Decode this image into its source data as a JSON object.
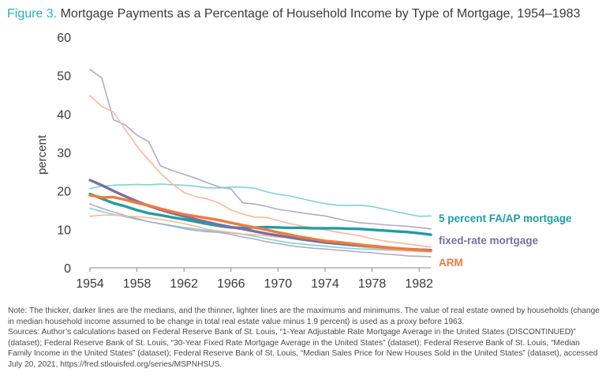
{
  "title": {
    "figure_label": "Figure 3.",
    "text": "Mortgage Payments as a Percentage of Household Income by Type of Mortgage, 1954–1983"
  },
  "notes": {
    "note": "Note: The thicker, darker lines are the medians, and the thinner, lighter lines are the maximums and minimums. The value of real estate owned by households (change in median household income assumed to be change in total real estate value minus 1.9 percent) is used as a proxy before 1963.",
    "sources": "Sources: Author’s calculations based on Federal Reserve Bank of St. Louis, “1-Year Adjustable Rate Mortgage Average in the United States (DISCONTINUED)” (dataset); Federal Reserve Bank of St. Louis, “30-Year Fixed Rate Mortgage Average in the United States” (dataset); Federal Reserve Bank of St. Louis, “Median Family Income in the United States” (dataset); Federal Reserve Bank of St. Louis, “Median Sales Price for New Houses Sold in the United States” (dataset), accessed July 20, 2021, https://fred.stlouisfed.org/series/MSPNHSUS."
  },
  "chart_data": {
    "type": "line",
    "title": "Mortgage Payments as a Percentage of Household Income by Type of Mortgage, 1954–1983",
    "xlabel": "",
    "ylabel": "percent",
    "xlim": [
      1954,
      1983
    ],
    "ylim": [
      0,
      60
    ],
    "xticks": [
      1954,
      1958,
      1962,
      1966,
      1970,
      1974,
      1978,
      1982
    ],
    "yticks": [
      0,
      10,
      20,
      30,
      40,
      50,
      60
    ],
    "grid": false,
    "legend": "inline-right",
    "x": [
      1954,
      1955,
      1956,
      1957,
      1958,
      1959,
      1960,
      1961,
      1962,
      1963,
      1964,
      1965,
      1966,
      1967,
      1968,
      1969,
      1970,
      1971,
      1972,
      1973,
      1974,
      1975,
      1976,
      1977,
      1978,
      1979,
      1980,
      1981,
      1982,
      1983
    ],
    "series": [
      {
        "name": "5 percent FA/AP mortgage",
        "group": "fa",
        "role": "median",
        "color": "#1f9ea3",
        "values": [
          19.2,
          18.0,
          16.8,
          16.0,
          15.0,
          14.2,
          13.7,
          13.1,
          12.6,
          12.0,
          11.4,
          10.9,
          10.5,
          10.4,
          10.5,
          10.6,
          10.5,
          10.4,
          10.4,
          10.3,
          10.3,
          10.3,
          10.2,
          10.1,
          9.9,
          9.7,
          9.5,
          9.3,
          9.0,
          8.6
        ]
      },
      {
        "name": "",
        "group": "fa",
        "role": "max",
        "color": "#7fd3d3",
        "values": [
          20.6,
          21.2,
          21.5,
          21.6,
          21.7,
          21.6,
          21.8,
          21.6,
          21.5,
          21.2,
          20.8,
          20.8,
          21.0,
          21.0,
          20.7,
          19.8,
          19.1,
          18.7,
          18.0,
          17.3,
          16.7,
          16.3,
          16.2,
          16.3,
          15.9,
          15.3,
          14.6,
          14.0,
          13.4,
          13.5
        ]
      },
      {
        "name": "",
        "group": "fa",
        "role": "min",
        "color": "#7fd3d3",
        "values": [
          15.5,
          14.6,
          13.9,
          13.3,
          12.6,
          12.0,
          11.5,
          11.0,
          10.5,
          10.1,
          9.7,
          9.4,
          9.1,
          8.7,
          8.2,
          7.6,
          7.0,
          6.5,
          6.2,
          5.9,
          5.6,
          5.3,
          5.1,
          4.9,
          4.8,
          4.6,
          4.5,
          4.4,
          4.4,
          4.3
        ]
      },
      {
        "name": "fixed-rate mortgage",
        "group": "fixed",
        "role": "median",
        "color": "#7a6fa0",
        "values": [
          22.8,
          21.5,
          20.0,
          18.6,
          17.3,
          16.1,
          15.1,
          14.2,
          13.4,
          12.6,
          11.9,
          11.2,
          10.6,
          10.1,
          9.5,
          8.9,
          8.4,
          7.9,
          7.4,
          7.0,
          6.6,
          6.3,
          6.0,
          5.8,
          5.6,
          5.3,
          5.1,
          4.9,
          4.7,
          4.6
        ]
      },
      {
        "name": "",
        "group": "fixed",
        "role": "max",
        "color": "#b2aac8",
        "values": [
          51.6,
          49.4,
          38.5,
          37.2,
          34.5,
          32.8,
          26.5,
          25.3,
          24.3,
          23.3,
          22.1,
          21.0,
          20.5,
          16.9,
          16.6,
          16.0,
          15.2,
          14.8,
          14.3,
          13.9,
          13.5,
          12.8,
          12.2,
          11.7,
          11.5,
          11.2,
          11.0,
          10.8,
          10.5,
          10.1
        ]
      },
      {
        "name": "",
        "group": "fixed",
        "role": "min",
        "color": "#b2aac8",
        "values": [
          16.6,
          15.5,
          14.5,
          13.6,
          12.8,
          12.0,
          11.4,
          10.8,
          10.2,
          9.7,
          9.4,
          9.2,
          8.7,
          8.0,
          7.5,
          6.8,
          6.3,
          5.8,
          5.4,
          5.1,
          4.9,
          4.6,
          4.4,
          4.1,
          3.9,
          3.6,
          3.4,
          3.1,
          3.0,
          2.9
        ]
      },
      {
        "name": "ARM",
        "group": "arm",
        "role": "median",
        "color": "#f07a3c",
        "values": [
          18.9,
          18.3,
          18.4,
          17.7,
          16.9,
          16.2,
          15.4,
          14.6,
          13.9,
          13.4,
          12.9,
          12.4,
          11.7,
          11.1,
          10.5,
          9.9,
          9.2,
          8.6,
          8.0,
          7.5,
          7.0,
          6.7,
          6.4,
          6.0,
          5.7,
          5.4,
          5.1,
          4.8,
          4.6,
          4.4
        ]
      },
      {
        "name": "",
        "group": "arm",
        "role": "max",
        "color": "#f8b898",
        "values": [
          44.8,
          42.0,
          40.5,
          36.0,
          31.6,
          28.0,
          24.6,
          21.8,
          19.6,
          18.5,
          17.9,
          16.8,
          15.0,
          14.0,
          13.2,
          13.1,
          12.3,
          11.5,
          10.9,
          10.4,
          9.9,
          9.3,
          8.8,
          8.3,
          7.6,
          7.0,
          6.6,
          6.2,
          5.8,
          5.4
        ]
      },
      {
        "name": "",
        "group": "arm",
        "role": "min",
        "color": "#f8b898",
        "values": [
          13.4,
          13.7,
          13.7,
          13.5,
          13.3,
          13.0,
          12.6,
          12.1,
          11.5,
          10.8,
          10.0,
          9.6,
          9.2,
          8.8,
          8.6,
          8.3,
          8.0,
          7.8,
          7.5,
          7.1,
          6.7,
          6.3,
          5.9,
          5.5,
          5.1,
          4.8,
          4.6,
          4.4,
          4.3,
          4.2
        ]
      }
    ]
  }
}
